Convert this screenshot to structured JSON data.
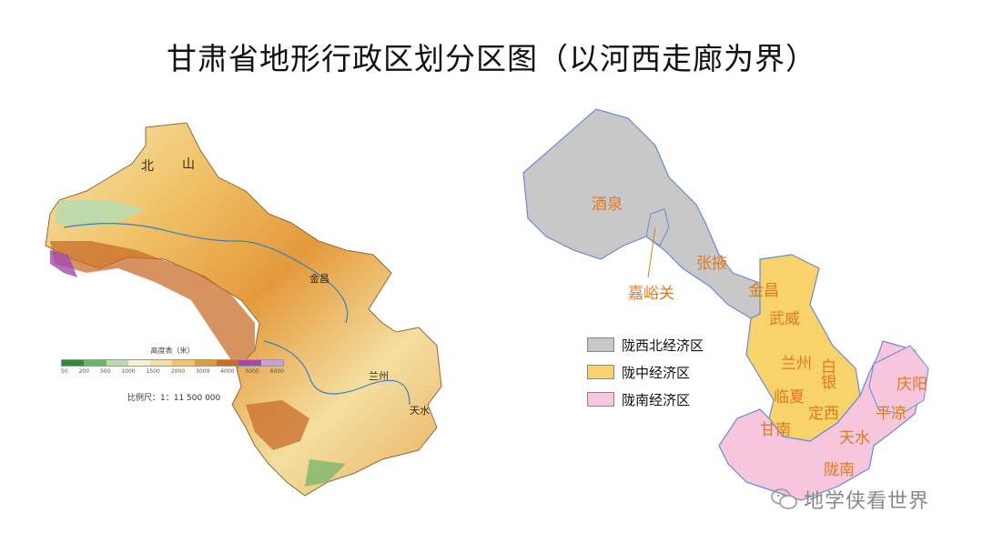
{
  "title": "甘肃省地形行政区划分区图（以河西走廊为界）",
  "left_map": {
    "scale_title": "高度表（米）",
    "elevation_ticks": [
      "50",
      "200",
      "500",
      "1000",
      "1500",
      "2000",
      "3000",
      "4000",
      "5000",
      "6000"
    ],
    "elevation_colors": [
      "#2e8b3e",
      "#6cb56a",
      "#b6dcb0",
      "#f3f0d4",
      "#f4dfa0",
      "#f1c46a",
      "#e49a3a",
      "#c86e2a",
      "#a04ab0",
      "#c8a0dc"
    ],
    "scale_ratio": "比例尺：1：11 500 000",
    "labels": {
      "bei": "北",
      "shan": "山",
      "jinchang": "金昌",
      "lanzhou": "兰州",
      "tianshui": "天水"
    }
  },
  "right_map": {
    "cities": {
      "jiuquan": "酒泉",
      "jiayuguan": "嘉峪关",
      "zhangye": "张掖",
      "jinchang": "金昌",
      "wuwei": "武威",
      "baiyin": "白银",
      "lanzhou": "兰州",
      "qingyang": "庆阳",
      "linxia": "临夏",
      "dingxi": "定西",
      "pingliang": "平凉",
      "gannan": "甘南",
      "tianshui": "天水",
      "longnan": "陇南"
    },
    "legend": [
      {
        "label": "陇西北经济区",
        "color": "#c8c8c8"
      },
      {
        "label": "陇中经济区",
        "color": "#f7d36a"
      },
      {
        "label": "陇南经济区",
        "color": "#f5c6dc"
      }
    ],
    "label_color": "#e07a1e"
  },
  "watermark": "地学侠看世界"
}
